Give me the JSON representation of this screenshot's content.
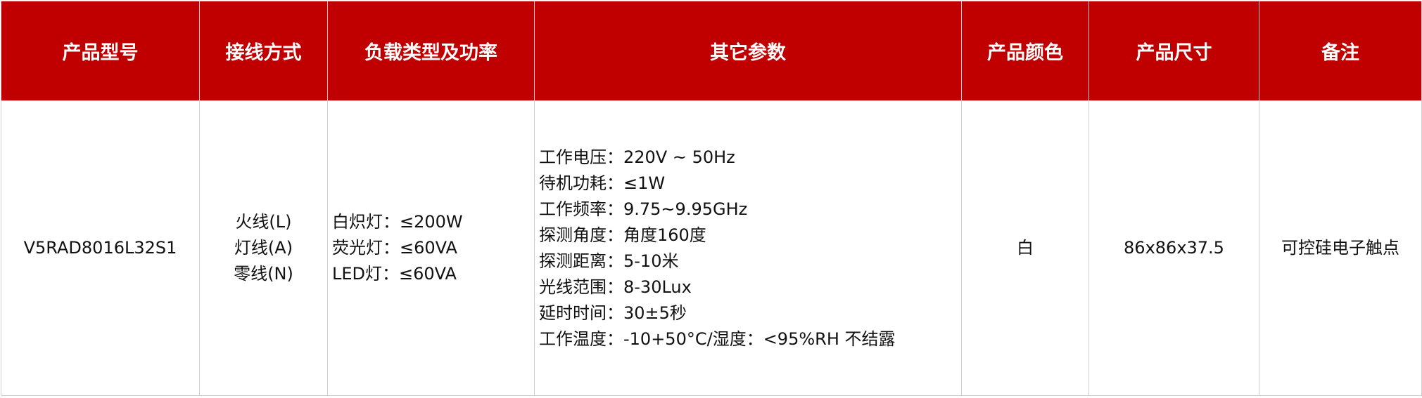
{
  "headers": [
    "产品型号",
    "接线方式",
    "负载类型及功率",
    "其它参数",
    "产品颜色",
    "产品尺寸",
    "备注"
  ],
  "row": {
    "model": "V5RAD8016L32S1",
    "wiring": [
      "火线(L)",
      "灯线(A)",
      "零线(N)"
    ],
    "load": [
      "白炽灯：≤200W",
      "荧光灯：≤60VA",
      "LED灯：≤60VA"
    ],
    "params": [
      "工作电压：220V ~ 50Hz",
      "待机功耗：≤1W",
      "工作频率：9.75~9.95GHz",
      "探测角度：角度160度",
      "探测距离：5-10米",
      "光线范围：8-30Lux",
      "延时时间：30±5秒",
      "工作温度：-10+50°C/湿度：<95%RH 不结露"
    ],
    "color": "白",
    "size": "86x86x37.5",
    "note": "可控硅电子触点"
  },
  "colors": {
    "header_bg": "#c00000",
    "header_text": "#ffffff",
    "border": "#d0d0d0"
  }
}
